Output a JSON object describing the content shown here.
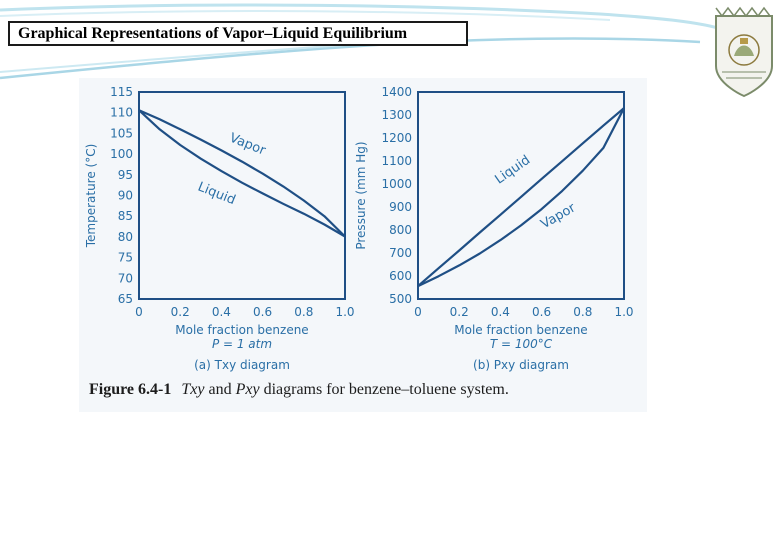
{
  "slide": {
    "title": "Graphical Representations of Vapor–Liquid Equilibrium",
    "logo": "university-seal-icon"
  },
  "figure": {
    "caption_number": "Figure 6.4-1",
    "caption_parts": [
      "Txy",
      " and ",
      "Pxy",
      " diagrams for benzene–toluene system."
    ]
  },
  "chart_data": [
    {
      "type": "line",
      "title": "Txy diagram",
      "panel_label": "(a)",
      "panel_name": "Txy diagram",
      "condition": "P = 1 atm",
      "xlabel": "Mole fraction benzene",
      "ylabel": "Temperature (°C)",
      "xlim": [
        0,
        1.0
      ],
      "ylim": [
        65,
        115
      ],
      "xticks": [
        0,
        0.2,
        0.4,
        0.6,
        0.8,
        1.0
      ],
      "xtick_labels": [
        "0",
        "0.2",
        "0.4",
        "0.6",
        "0.8",
        "1.0"
      ],
      "yticks": [
        65,
        70,
        75,
        80,
        85,
        90,
        95,
        100,
        105,
        110,
        115
      ],
      "series": [
        {
          "name": "Vapor",
          "x": [
            0,
            0.1,
            0.2,
            0.3,
            0.4,
            0.5,
            0.6,
            0.7,
            0.8,
            0.9,
            1.0
          ],
          "y": [
            110.6,
            108.4,
            106.0,
            103.5,
            100.9,
            98.2,
            95.3,
            92.2,
            88.8,
            85.0,
            80.1
          ]
        },
        {
          "name": "Liquid",
          "x": [
            0,
            0.1,
            0.2,
            0.3,
            0.4,
            0.5,
            0.6,
            0.7,
            0.8,
            0.9,
            1.0
          ],
          "y": [
            110.6,
            106.0,
            102.2,
            98.9,
            95.9,
            93.1,
            90.5,
            88.0,
            85.6,
            83.0,
            80.1
          ]
        }
      ]
    },
    {
      "type": "line",
      "title": "Pxy diagram",
      "panel_label": "(b)",
      "panel_name": "Pxy diagram",
      "condition": "T = 100°C",
      "xlabel": "Mole fraction benzene",
      "ylabel": "Pressure (mm Hg)",
      "xlim": [
        0,
        1.0
      ],
      "ylim": [
        500,
        1400
      ],
      "xticks": [
        0,
        0.2,
        0.4,
        0.6,
        0.8,
        1.0
      ],
      "xtick_labels": [
        "0",
        "0.2",
        "0.4",
        "0.6",
        "0.8",
        "1.0"
      ],
      "yticks": [
        500,
        600,
        700,
        800,
        900,
        1000,
        1100,
        1200,
        1300,
        1400
      ],
      "series": [
        {
          "name": "Liquid",
          "x": [
            0,
            0.1,
            0.2,
            0.3,
            0.4,
            0.5,
            0.6,
            0.7,
            0.8,
            0.9,
            1.0
          ],
          "y": [
            556,
            634,
            711,
            789,
            866,
            944,
            1022,
            1099,
            1177,
            1254,
            1330
          ]
        },
        {
          "name": "Vapor",
          "x": [
            0,
            0.1,
            0.2,
            0.3,
            0.4,
            0.5,
            0.6,
            0.7,
            0.8,
            0.9,
            1.0
          ],
          "y": [
            556,
            599,
            646,
            698,
            756,
            820,
            891,
            970,
            1058,
            1157,
            1330
          ]
        }
      ]
    }
  ]
}
